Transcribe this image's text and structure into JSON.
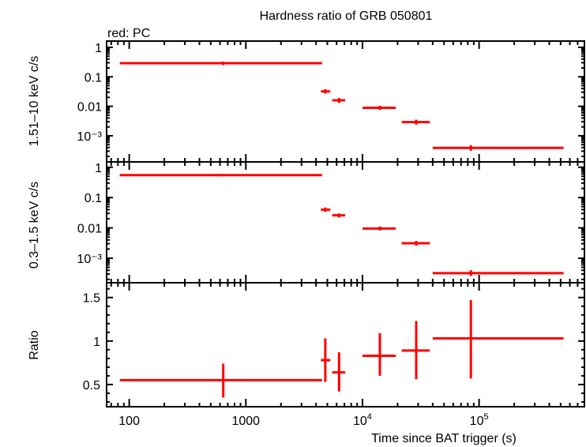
{
  "chart_data": [
    {
      "type": "scatter",
      "title": "Hardness ratio of GRB 050801",
      "annotation": "red: PC",
      "ylabel": "1.51–10 keV c/s",
      "yscale": "log",
      "ylim": [
        0.00013,
        1.63
      ],
      "yticks": [
        "1",
        "0.1",
        "0.01",
        "10⁻³"
      ],
      "color": "#ff0000",
      "points": [
        {
          "x": 640,
          "xlo": 83,
          "xhi": 4500,
          "y": 0.29,
          "ylo": 0.25,
          "yhi": 0.33
        },
        {
          "x": 4800,
          "xlo": 4400,
          "xhi": 5300,
          "y": 0.032,
          "ylo": 0.027,
          "yhi": 0.038
        },
        {
          "x": 6300,
          "xlo": 5500,
          "xhi": 7100,
          "y": 0.016,
          "ylo": 0.013,
          "yhi": 0.019
        },
        {
          "x": 14100,
          "xlo": 10000,
          "xhi": 19300,
          "y": 0.0089,
          "ylo": 0.0075,
          "yhi": 0.0105
        },
        {
          "x": 28900,
          "xlo": 21700,
          "xhi": 37800,
          "y": 0.0029,
          "ylo": 0.0024,
          "yhi": 0.0035
        },
        {
          "x": 85000,
          "xlo": 40000,
          "xhi": 530000,
          "y": 0.00039,
          "ylo": 0.00031,
          "yhi": 0.00048
        }
      ]
    },
    {
      "type": "scatter",
      "ylabel": "0.3–1.5 keV c/s",
      "yscale": "log",
      "ylim": [
        0.000155,
        1.5
      ],
      "yticks": [
        "1",
        "0.1",
        "0.01",
        "10⁻³"
      ],
      "color": "#ff0000",
      "points": [
        {
          "x": 640,
          "xlo": 83,
          "xhi": 4500,
          "y": 0.55,
          "ylo": 0.5,
          "yhi": 0.6
        },
        {
          "x": 4800,
          "xlo": 4400,
          "xhi": 5300,
          "y": 0.04,
          "ylo": 0.034,
          "yhi": 0.047
        },
        {
          "x": 6300,
          "xlo": 5500,
          "xhi": 7100,
          "y": 0.026,
          "ylo": 0.022,
          "yhi": 0.03
        },
        {
          "x": 14100,
          "xlo": 10000,
          "xhi": 19300,
          "y": 0.0095,
          "ylo": 0.0082,
          "yhi": 0.011
        },
        {
          "x": 28900,
          "xlo": 21700,
          "xhi": 37800,
          "y": 0.0031,
          "ylo": 0.0026,
          "yhi": 0.0037
        },
        {
          "x": 85000,
          "xlo": 40000,
          "xhi": 530000,
          "y": 0.00032,
          "ylo": 0.00026,
          "yhi": 0.0004
        }
      ]
    },
    {
      "type": "scatter",
      "ylabel": "Ratio",
      "xlabel": "Time since BAT trigger (s)",
      "xscale": "log",
      "xlim": [
        64,
        800000
      ],
      "xticks": [
        "100",
        "1000",
        "10⁴",
        "10⁵"
      ],
      "yscale": "linear",
      "ylim": [
        0.245,
        1.67
      ],
      "yticks": [
        "1.5",
        "1",
        "0.5"
      ],
      "color": "#ff0000",
      "points": [
        {
          "x": 640,
          "xlo": 83,
          "xhi": 4500,
          "y": 0.55,
          "ylo": 0.35,
          "yhi": 0.74
        },
        {
          "x": 4800,
          "xlo": 4400,
          "xhi": 5300,
          "y": 0.78,
          "ylo": 0.53,
          "yhi": 1.03
        },
        {
          "x": 6300,
          "xlo": 5500,
          "xhi": 7100,
          "y": 0.64,
          "ylo": 0.42,
          "yhi": 0.87
        },
        {
          "x": 14100,
          "xlo": 10000,
          "xhi": 19300,
          "y": 0.83,
          "ylo": 0.6,
          "yhi": 1.09
        },
        {
          "x": 28900,
          "xlo": 21700,
          "xhi": 37800,
          "y": 0.89,
          "ylo": 0.56,
          "yhi": 1.23
        },
        {
          "x": 85000,
          "xlo": 40000,
          "xhi": 530000,
          "y": 1.03,
          "ylo": 0.57,
          "yhi": 1.47
        }
      ]
    }
  ]
}
